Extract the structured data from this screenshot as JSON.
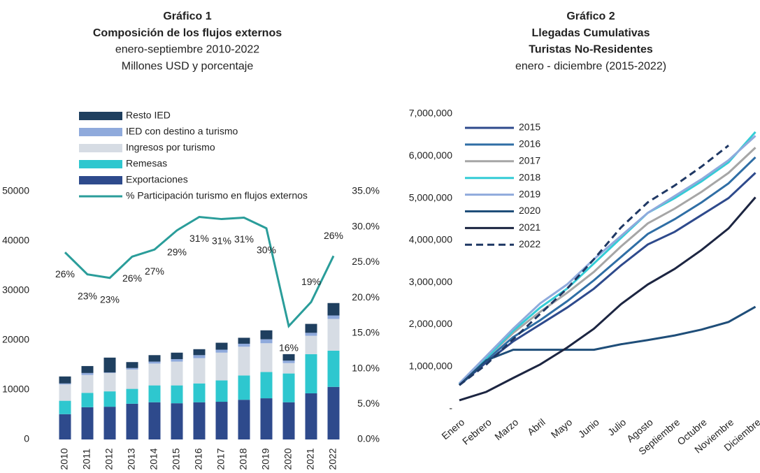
{
  "chart_data": [
    {
      "type": "bar-line",
      "title_lines": [
        "Gráfico 1",
        "Composición de los flujos externos"
      ],
      "subtitle_lines": [
        "enero-septiembre 2010-2022",
        "Millones USD y porcentaje"
      ],
      "stacked": true,
      "categories": [
        "2010",
        "2011",
        "2012",
        "2013",
        "2014",
        "2015",
        "2016",
        "2017",
        "2018",
        "2019",
        "2020",
        "2021",
        "2022"
      ],
      "series": [
        {
          "name": "Exportaciones",
          "color": "#2e4a8c",
          "values": [
            5100,
            6500,
            6600,
            7200,
            7500,
            7300,
            7500,
            7600,
            8000,
            8300,
            7500,
            9300,
            10600
          ]
        },
        {
          "name": "Remesas",
          "color": "#2ec7cf",
          "values": [
            2700,
            2900,
            3100,
            3000,
            3400,
            3600,
            3800,
            4300,
            4900,
            5300,
            5800,
            7900,
            7300
          ]
        },
        {
          "name": "Ingresos por turismo",
          "color": "#d6dce4",
          "values": [
            3300,
            3600,
            3700,
            3900,
            4400,
            4800,
            5100,
            5600,
            5800,
            5800,
            2100,
            3700,
            6400
          ]
        },
        {
          "name": "IED con destino a turismo",
          "color": "#8faadc",
          "values": [
            200,
            400,
            100,
            300,
            400,
            500,
            600,
            600,
            600,
            800,
            500,
            600,
            700
          ]
        },
        {
          "name": "Resto IED",
          "color": "#1f3f5f",
          "values": [
            1400,
            1400,
            3000,
            1200,
            1300,
            1300,
            1200,
            1400,
            1200,
            1800,
            1300,
            1800,
            2500
          ]
        },
        {
          "name": "% Participación turismo en flujos externos",
          "color": "#2a9d9a",
          "axis": "y2",
          "line": true,
          "values": [
            26.4,
            23.3,
            22.8,
            25.8,
            26.8,
            29.5,
            31.4,
            31.1,
            31.3,
            29.8,
            16.0,
            19.4,
            25.9
          ],
          "value_labels": [
            "26%",
            "23%",
            "23%",
            "26%",
            "27%",
            "29%",
            "31%",
            "31%",
            "31%",
            "30%",
            "16%",
            "19%",
            "26%"
          ]
        }
      ],
      "ylim": [
        0,
        50000
      ],
      "yticks": [
        0,
        10000,
        20000,
        30000,
        40000,
        50000
      ],
      "y2lim": [
        0,
        35
      ],
      "y2ticks": [
        {
          "value": 0,
          "label": "0.0%"
        },
        {
          "value": 5,
          "label": "5.0%"
        },
        {
          "value": 10,
          "label": "10.0%"
        },
        {
          "value": 15,
          "label": "15.0%"
        },
        {
          "value": 20,
          "label": "20.0%"
        },
        {
          "value": 25,
          "label": "25.0%"
        },
        {
          "value": 30,
          "label": "30.0%"
        },
        {
          "value": 35,
          "label": "35.0%"
        }
      ]
    },
    {
      "type": "line",
      "title_lines": [
        "Gráfico 2",
        "Llegadas Cumulativas",
        "Turistas No-Residentes"
      ],
      "subtitle_lines": [
        "enero - diciembre (2015-2022)"
      ],
      "categories": [
        "Enero",
        "Febrero",
        "Marzo",
        "Abril",
        "Mayo",
        "Junio",
        "Julio",
        "Agosto",
        "Septiembre",
        "Octubre",
        "Noviembre",
        "Diciembre"
      ],
      "series": [
        {
          "name": "2015",
          "color": "#2e4a8c",
          "values": [
            560000,
            1100000,
            1600000,
            2000000,
            2400000,
            2850000,
            3400000,
            3900000,
            4200000,
            4600000,
            5000000,
            5600000
          ]
        },
        {
          "name": "2016",
          "color": "#2f6ea5",
          "values": [
            580000,
            1150000,
            1700000,
            2100000,
            2550000,
            3050000,
            3600000,
            4150000,
            4500000,
            4900000,
            5350000,
            5970000
          ]
        },
        {
          "name": "2017",
          "color": "#a6a6a6",
          "values": [
            600000,
            1200000,
            1800000,
            2300000,
            2750000,
            3250000,
            3850000,
            4400000,
            4750000,
            5150000,
            5600000,
            6200000
          ]
        },
        {
          "name": "2018",
          "color": "#33ccd6",
          "values": [
            590000,
            1200000,
            1850000,
            2400000,
            2850000,
            3450000,
            4050000,
            4650000,
            5000000,
            5400000,
            5850000,
            6570000
          ]
        },
        {
          "name": "2019",
          "color": "#8faadc",
          "values": [
            600000,
            1250000,
            1900000,
            2500000,
            2950000,
            3550000,
            4100000,
            4650000,
            5050000,
            5450000,
            5900000,
            6480000
          ]
        },
        {
          "name": "2020",
          "color": "#1f4e79",
          "values": [
            560000,
            1150000,
            1400000,
            1400000,
            1400000,
            1400000,
            1530000,
            1630000,
            1740000,
            1880000,
            2060000,
            2420000
          ]
        },
        {
          "name": "2021",
          "color": "#1c2541",
          "values": [
            200000,
            400000,
            730000,
            1050000,
            1450000,
            1900000,
            2480000,
            2950000,
            3320000,
            3770000,
            4280000,
            5020000
          ]
        },
        {
          "name": "2022",
          "color": "#1f3864",
          "dashed": true,
          "values": [
            560000,
            1050000,
            1650000,
            2250000,
            2850000,
            3550000,
            4300000,
            4900000,
            5300000,
            5750000,
            6250000,
            null
          ]
        }
      ],
      "ylim": [
        0,
        7000000
      ],
      "yticks": [
        {
          "value": 0,
          "label": "-"
        },
        {
          "value": 1000000,
          "label": "1,000,000"
        },
        {
          "value": 2000000,
          "label": "2,000,000"
        },
        {
          "value": 3000000,
          "label": "3,000,000"
        },
        {
          "value": 4000000,
          "label": "4,000,000"
        },
        {
          "value": 5000000,
          "label": "5,000,000"
        },
        {
          "value": 6000000,
          "label": "6,000,000"
        },
        {
          "value": 7000000,
          "label": "7,000,000"
        }
      ]
    }
  ]
}
